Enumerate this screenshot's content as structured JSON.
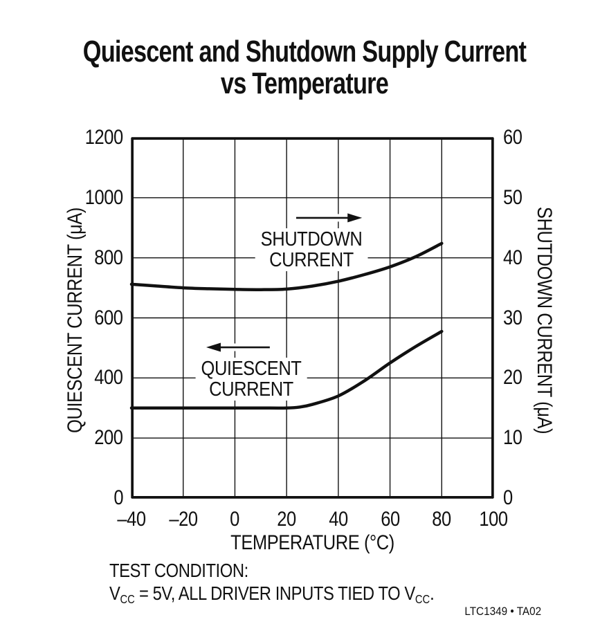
{
  "title": {
    "line1": "Quiescent and Shutdown Supply Current",
    "line2": "vs Temperature"
  },
  "chart_data": {
    "type": "line",
    "grid": true,
    "curve_color": "#111111",
    "background": "#ffffff",
    "x_axis": {
      "label": "TEMPERATURE (°C)",
      "min": -40,
      "max": 100,
      "ticks": [
        -40,
        -20,
        0,
        20,
        40,
        60,
        80,
        100
      ],
      "tick_labels": [
        "–40",
        "–20",
        "0",
        "20",
        "40",
        "60",
        "80",
        "100"
      ]
    },
    "y_left_axis": {
      "label": "QUIESCENT CURRENT (μA)",
      "min": 0,
      "max": 1200,
      "ticks": [
        0,
        200,
        400,
        600,
        800,
        1000,
        1200
      ],
      "tick_labels": [
        "0",
        "200",
        "400",
        "600",
        "800",
        "1000",
        "1200"
      ]
    },
    "y_right_axis": {
      "label": "SHUTDOWN CURRENT (μA)",
      "min": 0,
      "max": 60,
      "ticks": [
        0,
        10,
        20,
        30,
        40,
        50,
        60
      ],
      "tick_labels": [
        "0",
        "10",
        "20",
        "30",
        "40",
        "50",
        "60"
      ]
    },
    "series": [
      {
        "name": "QUIESCENT CURRENT",
        "axis": "left",
        "x": [
          -40,
          -30,
          -20,
          -10,
          0,
          10,
          20,
          25,
          30,
          40,
          50,
          60,
          70,
          80
        ],
        "y": [
          300,
          300,
          300,
          300,
          300,
          300,
          300,
          303,
          312,
          340,
          390,
          450,
          505,
          555
        ]
      },
      {
        "name": "SHUTDOWN CURRENT",
        "axis": "right",
        "x": [
          -40,
          -30,
          -20,
          -10,
          0,
          10,
          20,
          30,
          40,
          50,
          60,
          70,
          80
        ],
        "y": [
          35.6,
          35.3,
          35.0,
          34.85,
          34.75,
          34.7,
          34.8,
          35.3,
          36.1,
          37.2,
          38.5,
          40.2,
          42.4
        ]
      }
    ],
    "annotations": [
      {
        "id": "shutdown",
        "lines": [
          "SHUTDOWN",
          "CURRENT"
        ],
        "x": 29.6,
        "y": 827,
        "arrow": {
          "x1": 23.7,
          "y1": 933,
          "x2": 49.2,
          "y2": 933
        }
      },
      {
        "id": "quiescent",
        "lines": [
          "QUIESCENT",
          "CURRENT"
        ],
        "x": 6.3,
        "y": 396,
        "arrow": {
          "x1": 13.5,
          "y1": 502,
          "x2": -11.1,
          "y2": 502
        }
      }
    ]
  },
  "footer": {
    "test_condition_title": "TEST CONDITION:",
    "test_condition_rich": [
      {
        "text": "V"
      },
      {
        "sub": "CC"
      },
      {
        "text": " = 5V, ALL DRIVER INPUTS TIED TO V"
      },
      {
        "sub": "CC"
      },
      {
        "text": "."
      }
    ],
    "credit": "LTC1349 • TA02"
  }
}
